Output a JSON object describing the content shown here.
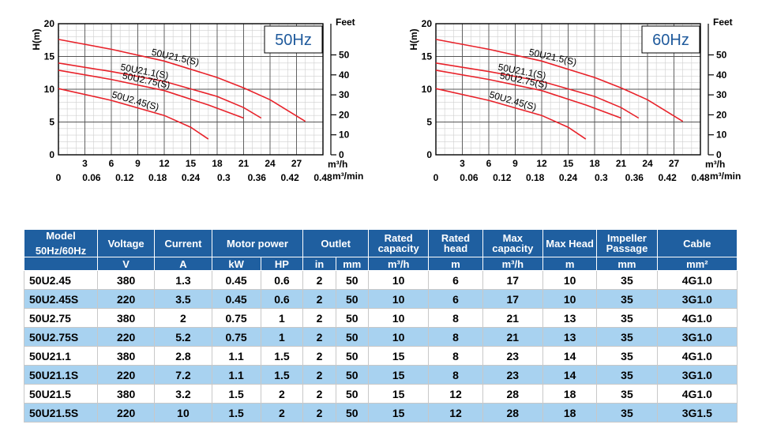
{
  "chart_data": [
    {
      "type": "line",
      "frequency_badge": "50Hz",
      "ylabel": "H(m)",
      "y2label": "Feet",
      "xlabel_top": "m³/h",
      "xlabel_bottom": "m³/min",
      "ylim": [
        0,
        20
      ],
      "xlim": [
        0,
        30
      ],
      "y_ticks": [
        0,
        5,
        10,
        15,
        20
      ],
      "y2_ticks": [
        "0",
        "10",
        "20",
        "30",
        "40",
        "50"
      ],
      "x_ticks": [
        "3",
        "6",
        "9",
        "12",
        "15",
        "18",
        "21",
        "24",
        "27"
      ],
      "x2_ticks": [
        "0",
        "0.06",
        "0.12",
        "0.18",
        "0.24",
        "0.3",
        "0.36",
        "0.42",
        "0.48"
      ],
      "grid": true,
      "series": [
        {
          "name": "50U21.5(S)",
          "color": "#e8222a",
          "points": [
            [
              0,
              17.6
            ],
            [
              6,
              16.1
            ],
            [
              12,
              14.3
            ],
            [
              18,
              11.8
            ],
            [
              21,
              10.2
            ],
            [
              24,
              8.4
            ],
            [
              28,
              5.1
            ]
          ]
        },
        {
          "name": "50U21.1(S)",
          "color": "#e8222a",
          "points": [
            [
              0,
              14.0
            ],
            [
              6,
              12.7
            ],
            [
              12,
              11.2
            ],
            [
              18,
              8.9
            ],
            [
              21,
              7.2
            ],
            [
              23,
              5.6
            ]
          ]
        },
        {
          "name": "50U2.75(S)",
          "color": "#e8222a",
          "points": [
            [
              0,
              12.9
            ],
            [
              6,
              11.5
            ],
            [
              12,
              9.8
            ],
            [
              17,
              7.6
            ],
            [
              21,
              5.6
            ]
          ]
        },
        {
          "name": "50U2.45(S)",
          "color": "#e8222a",
          "points": [
            [
              0,
              10.1
            ],
            [
              6,
              8.3
            ],
            [
              12,
              6.0
            ],
            [
              15,
              4.2
            ],
            [
              17,
              2.4
            ]
          ]
        }
      ]
    },
    {
      "type": "line",
      "frequency_badge": "60Hz",
      "ylabel": "H(m)",
      "y2label": "Feet",
      "xlabel_top": "m³/h",
      "xlabel_bottom": "m³/min",
      "ylim": [
        0,
        20
      ],
      "xlim": [
        0,
        30
      ],
      "y_ticks": [
        0,
        5,
        10,
        15,
        20
      ],
      "y2_ticks": [
        "0",
        "10",
        "20",
        "30",
        "40",
        "50"
      ],
      "x_ticks": [
        "3",
        "6",
        "9",
        "12",
        "15",
        "18",
        "21",
        "24",
        "27"
      ],
      "x2_ticks": [
        "0",
        "0.06",
        "0.12",
        "0.18",
        "0.24",
        "0.3",
        "0.36",
        "0.42",
        "0.48"
      ],
      "grid": true,
      "series": [
        {
          "name": "50U21.5(S)",
          "color": "#e8222a",
          "points": [
            [
              0,
              17.6
            ],
            [
              6,
              16.1
            ],
            [
              12,
              14.3
            ],
            [
              18,
              11.8
            ],
            [
              21,
              10.2
            ],
            [
              24,
              8.4
            ],
            [
              28,
              5.1
            ]
          ]
        },
        {
          "name": "50U21.1(S)",
          "color": "#e8222a",
          "points": [
            [
              0,
              14.0
            ],
            [
              6,
              12.7
            ],
            [
              12,
              11.2
            ],
            [
              18,
              8.9
            ],
            [
              21,
              7.2
            ],
            [
              23,
              5.6
            ]
          ]
        },
        {
          "name": "50U2.75(S)",
          "color": "#e8222a",
          "points": [
            [
              0,
              12.9
            ],
            [
              6,
              11.5
            ],
            [
              12,
              9.8
            ],
            [
              17,
              7.6
            ],
            [
              21,
              5.6
            ]
          ]
        },
        {
          "name": "50U2.45(S)",
          "color": "#e8222a",
          "points": [
            [
              0,
              10.1
            ],
            [
              6,
              8.3
            ],
            [
              12,
              6.0
            ],
            [
              15,
              4.2
            ],
            [
              17,
              2.4
            ]
          ]
        }
      ]
    }
  ],
  "table": {
    "headers": {
      "model": "Model",
      "model_sub": "50Hz/60Hz",
      "voltage": "Voltage",
      "voltage_unit": "V",
      "current": "Current",
      "current_unit": "A",
      "motor_power": "Motor power",
      "kw": "kW",
      "hp": "HP",
      "outlet": "Outlet",
      "outlet_in": "in",
      "outlet_mm": "mm",
      "rated_capacity": "Rated capacity",
      "rated_capacity_unit": "m³/h",
      "rated_head": "Rated head",
      "rated_head_unit": "m",
      "max_capacity": "Max capacity",
      "max_capacity_unit": "m³/h",
      "max_head": "Max Head",
      "max_head_unit": "m",
      "impeller": "Impeller Passage",
      "impeller_unit": "mm",
      "cable": "Cable",
      "cable_unit": "mm²"
    },
    "rows": [
      [
        "50U2.45",
        "380",
        "1.3",
        "0.45",
        "0.6",
        "2",
        "50",
        "10",
        "6",
        "17",
        "10",
        "35",
        "4G1.0"
      ],
      [
        "50U2.45S",
        "220",
        "3.5",
        "0.45",
        "0.6",
        "2",
        "50",
        "10",
        "6",
        "17",
        "10",
        "35",
        "3G1.0"
      ],
      [
        "50U2.75",
        "380",
        "2",
        "0.75",
        "1",
        "2",
        "50",
        "10",
        "8",
        "21",
        "13",
        "35",
        "4G1.0"
      ],
      [
        "50U2.75S",
        "220",
        "5.2",
        "0.75",
        "1",
        "2",
        "50",
        "10",
        "8",
        "21",
        "13",
        "35",
        "3G1.0"
      ],
      [
        "50U21.1",
        "380",
        "2.8",
        "1.1",
        "1.5",
        "2",
        "50",
        "15",
        "8",
        "23",
        "14",
        "35",
        "4G1.0"
      ],
      [
        "50U21.1S",
        "220",
        "7.2",
        "1.1",
        "1.5",
        "2",
        "50",
        "15",
        "8",
        "23",
        "14",
        "35",
        "3G1.0"
      ],
      [
        "50U21.5",
        "380",
        "3.2",
        "1.5",
        "2",
        "2",
        "50",
        "15",
        "12",
        "28",
        "18",
        "35",
        "4G1.0"
      ],
      [
        "50U21.5S",
        "220",
        "10",
        "1.5",
        "2",
        "2",
        "50",
        "15",
        "12",
        "28",
        "18",
        "35",
        "3G1.5"
      ]
    ]
  }
}
